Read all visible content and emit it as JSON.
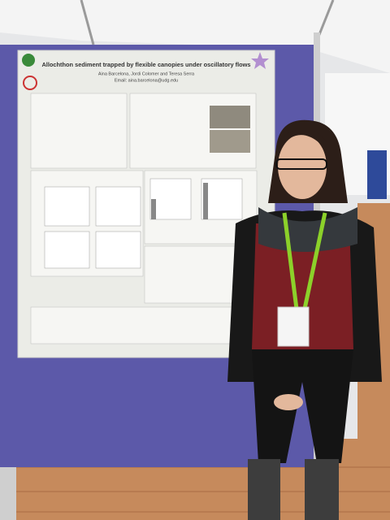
{
  "poster": {
    "title": "Allochthon sediment trapped by flexible canopies under oscillatory flows",
    "authors": "Aina Barcelona, Jordi Colomer and Teresa Serra",
    "email": "Email: aina.barcelona@udg.edu"
  }
}
